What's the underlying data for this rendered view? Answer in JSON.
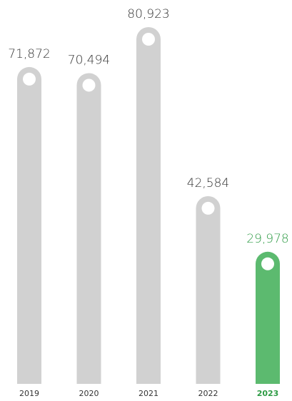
{
  "chart_data": {
    "type": "bar",
    "categories": [
      "2019",
      "2020",
      "2021",
      "2022",
      "2023"
    ],
    "values": [
      71872,
      70494,
      80923,
      42584,
      29978
    ],
    "value_labels": [
      "71,872",
      "70,494",
      "80,923",
      "42,584",
      "29,978"
    ],
    "colors": [
      "#d1d1d1",
      "#d1d1d1",
      "#d1d1d1",
      "#d1d1d1",
      "#5cba6f"
    ],
    "label_colors": [
      "#333333",
      "#333333",
      "#333333",
      "#333333",
      "#2e9b45"
    ]
  }
}
